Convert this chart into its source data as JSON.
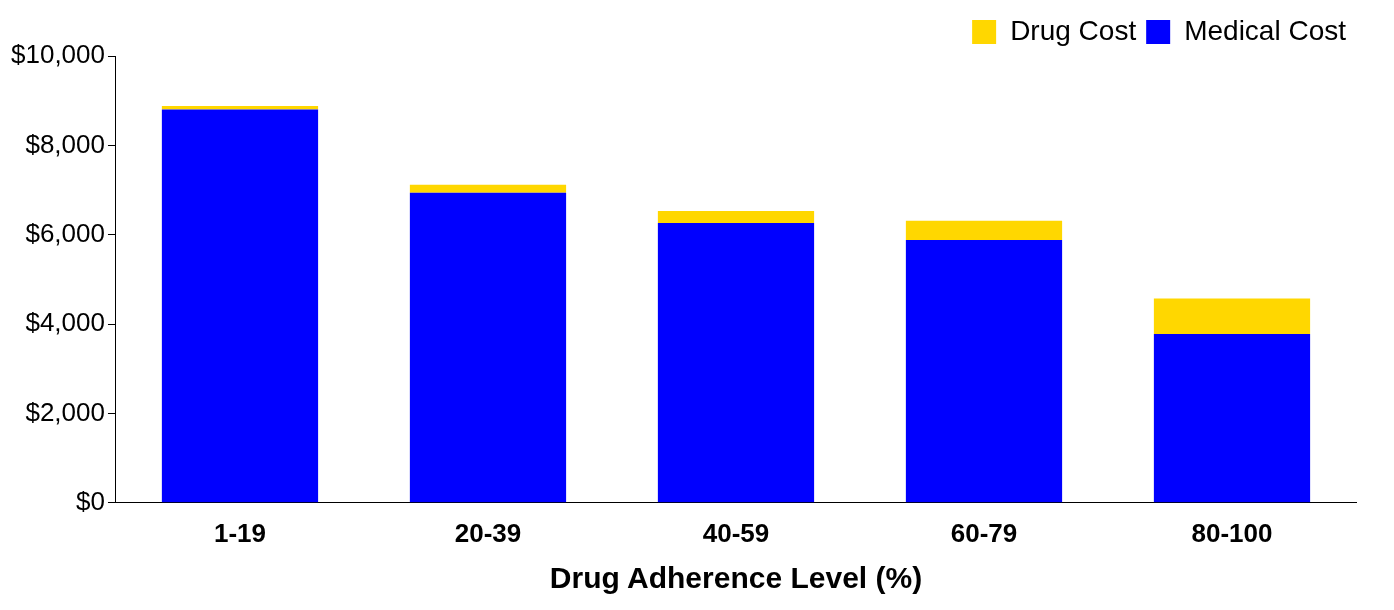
{
  "chart_data": {
    "type": "bar",
    "stacked": true,
    "xlabel": "Drug Adherence Level (%)",
    "categories": [
      "1-19",
      "20-39",
      "40-59",
      "60-79",
      "80-100"
    ],
    "series": [
      {
        "name": "Medical Cost",
        "color": "#0000ff",
        "values": [
          8800,
          6940,
          6260,
          5880,
          3780
        ]
      },
      {
        "name": "Drug Cost",
        "color": "#ffd700",
        "values": [
          80,
          180,
          270,
          430,
          790
        ]
      }
    ],
    "ylim": [
      0,
      10000
    ],
    "yticks": [
      {
        "value": 0,
        "label": "$0"
      },
      {
        "value": 2000,
        "label": "$2,000"
      },
      {
        "value": 4000,
        "label": "$4,000"
      },
      {
        "value": 6000,
        "label": "$6,000"
      },
      {
        "value": 8000,
        "label": "$8,000"
      },
      {
        "value": 10000,
        "label": "$10,000"
      }
    ],
    "grid": false,
    "legend": "top right"
  }
}
